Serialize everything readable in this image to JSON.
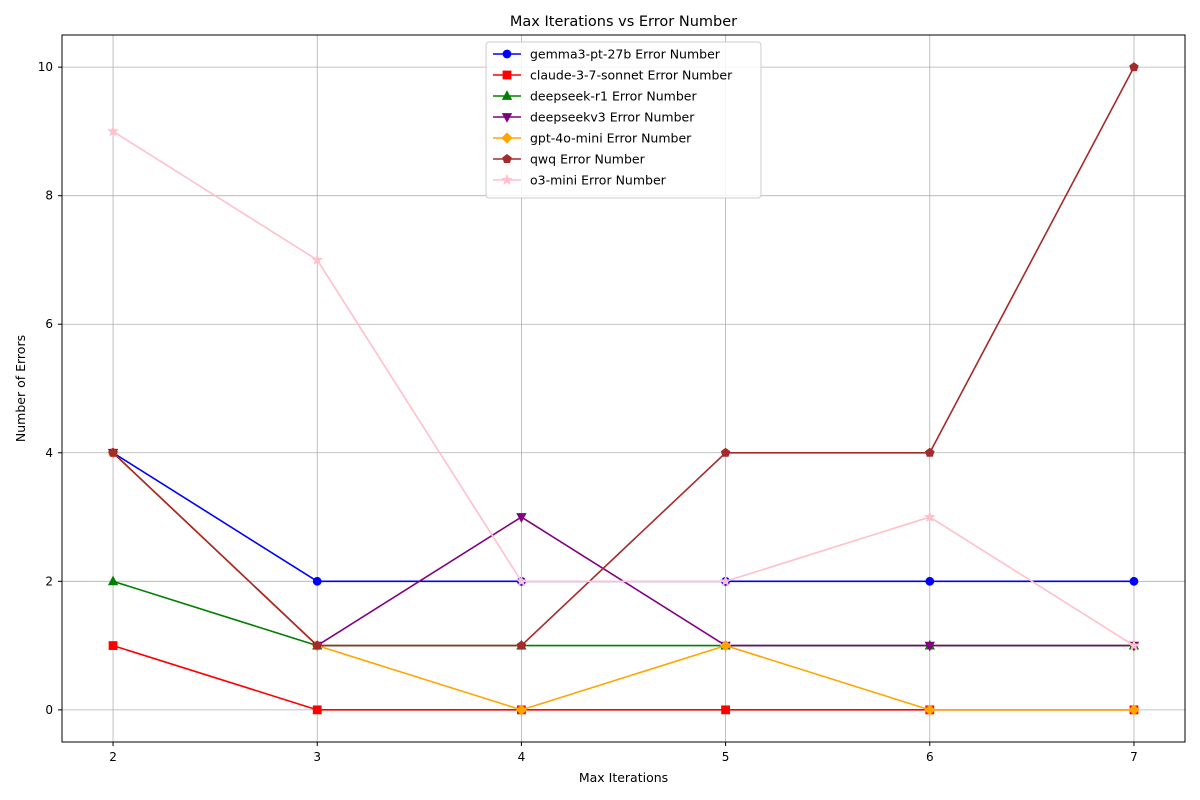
{
  "chart_data": {
    "type": "line",
    "title": "Max Iterations vs Error Number",
    "xlabel": "Max Iterations",
    "ylabel": "Number of Errors",
    "x": [
      2,
      3,
      4,
      5,
      6,
      7
    ],
    "xlim": [
      1.75,
      7.25
    ],
    "ylim": [
      -0.5,
      10.5
    ],
    "xticks": [
      2,
      3,
      4,
      5,
      6,
      7
    ],
    "yticks": [
      0,
      2,
      4,
      6,
      8,
      10
    ],
    "grid": true,
    "legend_position": "top-center",
    "series": [
      {
        "name": "gemma3-pt-27b Error Number",
        "color": "#0000ff",
        "marker": "circle",
        "values": [
          4,
          2,
          2,
          2,
          2,
          2
        ]
      },
      {
        "name": "claude-3-7-sonnet Error Number",
        "color": "#ff0000",
        "marker": "square",
        "values": [
          1,
          0,
          0,
          0,
          0,
          0
        ]
      },
      {
        "name": "deepseek-r1 Error Number",
        "color": "#008000",
        "marker": "triangle-up",
        "values": [
          2,
          1,
          1,
          1,
          1,
          1
        ]
      },
      {
        "name": "deepseekv3 Error Number",
        "color": "#800080",
        "marker": "triangle-down",
        "values": [
          4,
          1,
          3,
          1,
          1,
          1
        ]
      },
      {
        "name": "gpt-4o-mini Error Number",
        "color": "#ffa500",
        "marker": "diamond",
        "values": [
          4,
          1,
          0,
          1,
          0,
          0
        ]
      },
      {
        "name": "qwq Error Number",
        "color": "#a52a2a",
        "marker": "pentagon",
        "values": [
          4,
          1,
          1,
          4,
          4,
          10
        ]
      },
      {
        "name": "o3-mini Error Number",
        "color": "#ffc0cb",
        "marker": "star",
        "values": [
          9,
          7,
          2,
          2,
          3,
          1
        ]
      }
    ]
  }
}
